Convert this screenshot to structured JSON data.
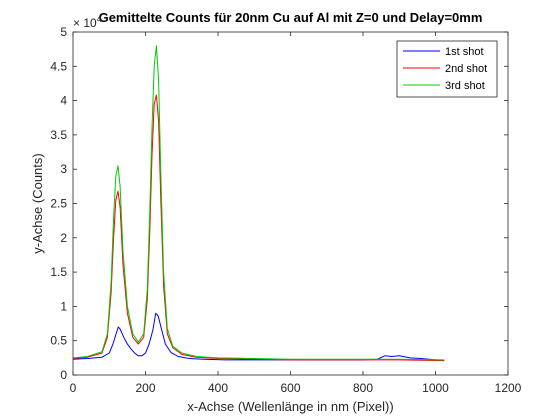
{
  "chart_data": {
    "type": "line",
    "title": "Gemittelte Counts für 20nm Cu auf Al mit Z=0 und Delay=0mm",
    "xlabel": "x-Achse (Wellenlänge in nm (Pixel))",
    "ylabel": "y-Achse (Counts)",
    "exponent_base": "× 10",
    "exponent_power": "4",
    "xlim": [
      0,
      1200
    ],
    "ylim": [
      0,
      5
    ],
    "xticks": [
      0,
      200,
      400,
      600,
      800,
      1000,
      1200
    ],
    "yticks": [
      0,
      0.5,
      1,
      1.5,
      2,
      2.5,
      3,
      3.5,
      4,
      4.5,
      5
    ],
    "xtick_labels": [
      "0",
      "200",
      "400",
      "600",
      "800",
      "1000",
      "1200"
    ],
    "ytick_labels": [
      "0",
      "0.5",
      "1",
      "1.5",
      "2",
      "2.5",
      "3",
      "3.5",
      "4",
      "4.5",
      "5"
    ],
    "legend_position": "top-right",
    "grid": false,
    "series": [
      {
        "name": "1st shot",
        "color": "#0000ff",
        "x": [
          0,
          40,
          80,
          100,
          110,
          120,
          125,
          130,
          140,
          150,
          160,
          170,
          180,
          190,
          200,
          210,
          220,
          228,
          235,
          245,
          255,
          270,
          290,
          320,
          360,
          420,
          500,
          600,
          700,
          800,
          840,
          860,
          880,
          900,
          930,
          960,
          1000,
          1024
        ],
        "y": [
          0.23,
          0.24,
          0.26,
          0.32,
          0.45,
          0.62,
          0.7,
          0.67,
          0.55,
          0.45,
          0.38,
          0.32,
          0.28,
          0.28,
          0.32,
          0.45,
          0.65,
          0.9,
          0.86,
          0.65,
          0.45,
          0.33,
          0.27,
          0.24,
          0.23,
          0.22,
          0.22,
          0.22,
          0.22,
          0.22,
          0.23,
          0.28,
          0.27,
          0.28,
          0.25,
          0.24,
          0.22,
          0.21
        ]
      },
      {
        "name": "2nd shot",
        "color": "#ff0000",
        "x": [
          0,
          40,
          80,
          95,
          105,
          112,
          118,
          124,
          130,
          138,
          150,
          165,
          180,
          195,
          205,
          212,
          218,
          224,
          230,
          236,
          242,
          250,
          260,
          275,
          300,
          340,
          400,
          500,
          600,
          700,
          800,
          900,
          1024
        ],
        "y": [
          0.24,
          0.26,
          0.32,
          0.55,
          1.2,
          2.0,
          2.55,
          2.68,
          2.45,
          1.6,
          0.9,
          0.55,
          0.45,
          0.55,
          1.1,
          2.1,
          3.2,
          3.95,
          4.08,
          3.7,
          2.6,
          1.3,
          0.6,
          0.4,
          0.3,
          0.26,
          0.24,
          0.23,
          0.22,
          0.22,
          0.22,
          0.22,
          0.21
        ]
      },
      {
        "name": "3rd shot",
        "color": "#00cc00",
        "x": [
          0,
          40,
          80,
          95,
          105,
          112,
          118,
          124,
          130,
          138,
          150,
          165,
          180,
          195,
          205,
          212,
          218,
          224,
          230,
          236,
          242,
          250,
          260,
          275,
          300,
          340,
          400,
          500,
          600,
          700,
          800,
          900,
          1024
        ],
        "y": [
          0.25,
          0.27,
          0.34,
          0.6,
          1.35,
          2.3,
          2.9,
          3.05,
          2.75,
          1.8,
          1.0,
          0.6,
          0.48,
          0.6,
          1.25,
          2.4,
          3.6,
          4.5,
          4.8,
          4.3,
          3.0,
          1.5,
          0.68,
          0.42,
          0.32,
          0.27,
          0.25,
          0.24,
          0.23,
          0.23,
          0.23,
          0.23,
          0.22
        ]
      }
    ]
  }
}
